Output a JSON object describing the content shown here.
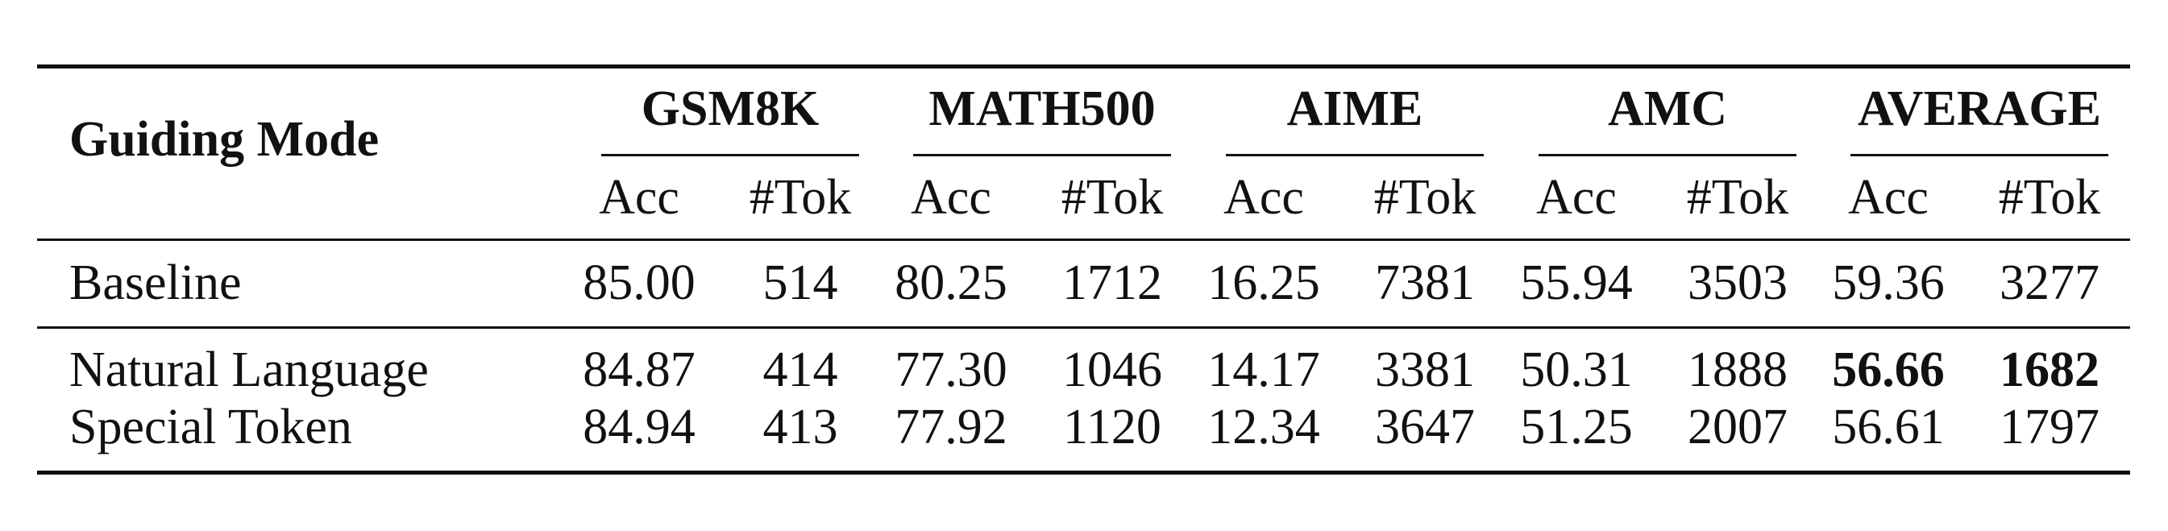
{
  "table": {
    "row_header": "Guiding Mode",
    "groups": [
      "GSM8K",
      "MATH500",
      "AIME",
      "AMC",
      "AVERAGE"
    ],
    "subheaders": [
      "Acc",
      "#Tok"
    ],
    "rows": [
      {
        "label": "Baseline",
        "values": [
          "85.00",
          "514",
          "80.25",
          "1712",
          "16.25",
          "7381",
          "55.94",
          "3503",
          "59.36",
          "3277"
        ],
        "bold": []
      },
      {
        "label": "Natural Language",
        "values": [
          "84.87",
          "414",
          "77.30",
          "1046",
          "14.17",
          "3381",
          "50.31",
          "1888",
          "56.66",
          "1682"
        ],
        "bold": [
          8,
          9
        ]
      },
      {
        "label": "Special Token",
        "values": [
          "84.94",
          "413",
          "77.92",
          "1120",
          "12.34",
          "3647",
          "51.25",
          "2007",
          "56.61",
          "1797"
        ],
        "bold": []
      }
    ]
  }
}
